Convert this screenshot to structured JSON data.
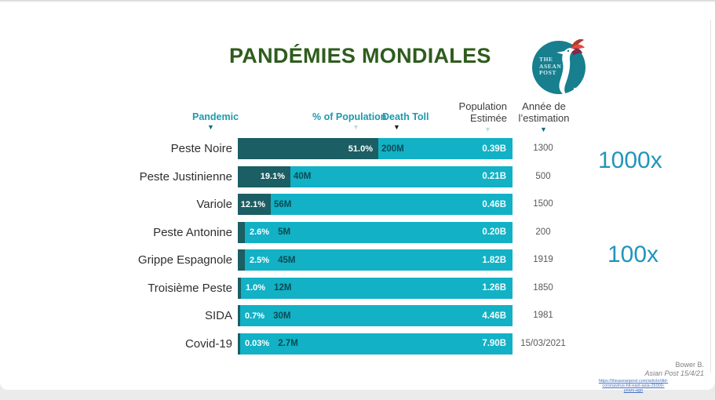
{
  "title": "PANDÉMIES MONDIALES",
  "logo": {
    "line1": "THE",
    "line2": "ASEAN",
    "line3": "POST",
    "name": "The ASEAN Post",
    "circle_color": "#177f8e"
  },
  "columns": {
    "pandemic": "Pandemic",
    "pct": "% of Population",
    "death_toll": "Death Toll",
    "population_line1": "Population",
    "population_line2": "Estimée",
    "annee_line1": "Année de",
    "annee_line2": "l’estimation"
  },
  "annotations": {
    "top_multiplier": "1000x",
    "bottom_multiplier": "100x"
  },
  "chart_data": {
    "type": "bar",
    "title": "PANDÉMIES MONDIALES",
    "columns": [
      "Pandemic",
      "% of Population",
      "Death Toll",
      "Population Estimée",
      "Année de l'estimation"
    ],
    "legend_position": "none",
    "grid": false,
    "pct_axis_range": [
      0,
      100
    ],
    "rows": [
      {
        "pandemic": "Peste Noire",
        "pct_of_population": 51.0,
        "pct_label": "51.0%",
        "death_toll": "200M",
        "population_estimee": "0.39B",
        "annee": "1300"
      },
      {
        "pandemic": "Peste Justinienne",
        "pct_of_population": 19.1,
        "pct_label": "19.1%",
        "death_toll": "40M",
        "population_estimee": "0.21B",
        "annee": "500"
      },
      {
        "pandemic": "Variole",
        "pct_of_population": 12.1,
        "pct_label": "12.1%",
        "death_toll": "56M",
        "population_estimee": "0.46B",
        "annee": "1500"
      },
      {
        "pandemic": "Peste Antonine",
        "pct_of_population": 2.6,
        "pct_label": "2.6%",
        "death_toll": "5M",
        "population_estimee": "0.20B",
        "annee": "200"
      },
      {
        "pandemic": "Grippe Espagnole",
        "pct_of_population": 2.5,
        "pct_label": "2.5%",
        "death_toll": "45M",
        "population_estimee": "1.82B",
        "annee": "1919"
      },
      {
        "pandemic": "Troisième Peste",
        "pct_of_population": 1.0,
        "pct_label": "1.0%",
        "death_toll": "12M",
        "population_estimee": "1.26B",
        "annee": "1850"
      },
      {
        "pandemic": "SIDA",
        "pct_of_population": 0.7,
        "pct_label": "0.7%",
        "death_toll": "30M",
        "population_estimee": "4.46B",
        "annee": "1981"
      },
      {
        "pandemic": "Covid-19",
        "pct_of_population": 0.03,
        "pct_label": "0.03%",
        "death_toll": "2.7M",
        "population_estimee": "7.90B",
        "annee": "15/03/2021"
      }
    ]
  },
  "footer": {
    "author": "Bower B.",
    "source": "Asian Post 15/4/21",
    "link_line1": "https://theaseanpost.com/article/did-",
    "link_line2": "coronavirus-hit-east-asia-25000-",
    "link_line3": "years-ago"
  },
  "colors": {
    "title_green": "#2e5c1c",
    "bar_light_teal": "#12b1c5",
    "bar_dark_teal": "#1b5e63",
    "header_teal": "#1e9aaa",
    "multiplier_blue": "#2095bd",
    "year_gray": "#595959"
  }
}
